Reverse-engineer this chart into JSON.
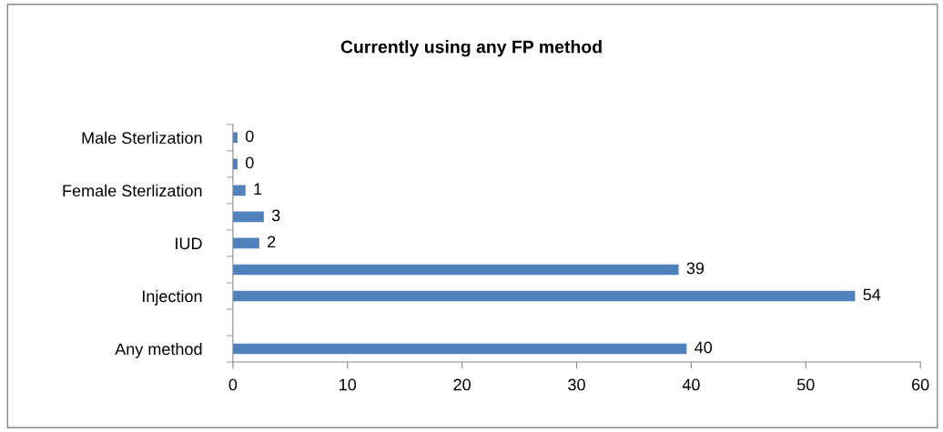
{
  "chart_data": {
    "type": "bar",
    "orientation": "horizontal",
    "title": "Currently using any FP method",
    "categories": [
      "Male Sterlization",
      null,
      "Female Sterlization",
      null,
      "IUD",
      null,
      "Injection",
      null,
      "Any method"
    ],
    "values": [
      0.4,
      0.4,
      1.1,
      2.7,
      2.3,
      38.9,
      54.3,
      null,
      39.6
    ],
    "value_labels": [
      "0",
      "0",
      "1",
      "3",
      "2",
      "39",
      "54",
      null,
      "40"
    ],
    "color": "#4f81bd",
    "xlim": [
      0,
      60
    ],
    "xticks": [
      0,
      10,
      20,
      30,
      40,
      50,
      60
    ],
    "grid": false,
    "legend": false
  }
}
